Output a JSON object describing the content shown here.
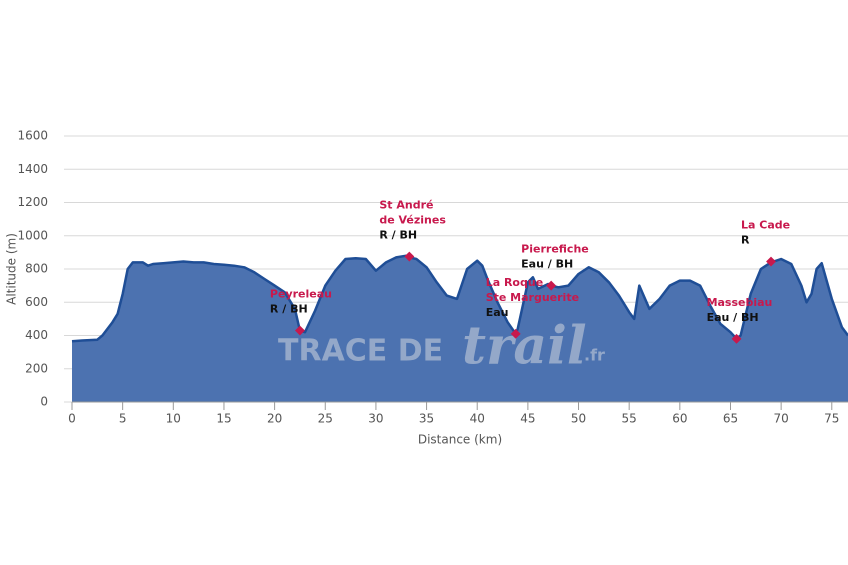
{
  "chart_data": {
    "type": "area",
    "x_label": "Distance (km)",
    "y_label": "Altitude (m)",
    "xlim": [
      0,
      76.6
    ],
    "ylim": [
      0,
      1600
    ],
    "xticks": [
      0,
      5,
      10,
      15,
      20,
      25,
      30,
      35,
      40,
      45,
      50,
      55,
      60,
      65,
      70,
      75
    ],
    "yticks": [
      0,
      200,
      400,
      600,
      800,
      1000,
      1200,
      1400,
      1600
    ],
    "grid": true,
    "fill_color": "#4c72b0",
    "line_color": "#1f4e96",
    "marker_color": "#c8194d",
    "x": [
      0,
      1,
      2.5,
      3,
      4,
      4.5,
      5,
      5.5,
      6,
      7,
      7.5,
      8,
      9,
      10,
      11,
      12,
      13,
      14,
      15,
      16,
      17,
      18,
      19,
      20,
      21,
      22,
      22.5,
      23,
      24,
      25,
      26,
      27,
      28,
      29,
      30,
      31,
      32,
      33,
      33.3,
      34,
      35,
      36,
      37,
      38,
      39,
      40,
      40.5,
      41,
      42,
      43,
      43.8,
      44,
      45,
      45.5,
      46,
      47,
      47.3,
      48,
      49,
      50,
      51,
      52,
      53,
      54,
      55,
      55.5,
      56,
      57,
      58,
      59,
      60,
      61,
      62,
      63,
      64,
      65,
      65.6,
      66,
      67,
      68,
      69,
      70,
      71,
      72,
      72.5,
      73,
      73.5,
      74,
      75,
      76,
      76.6
    ],
    "values": [
      365,
      370,
      375,
      400,
      480,
      530,
      650,
      800,
      840,
      840,
      820,
      830,
      835,
      840,
      845,
      840,
      840,
      830,
      825,
      820,
      810,
      780,
      740,
      700,
      660,
      560,
      430,
      420,
      550,
      700,
      790,
      860,
      865,
      860,
      790,
      840,
      870,
      880,
      870,
      860,
      810,
      720,
      640,
      620,
      800,
      850,
      820,
      740,
      600,
      480,
      410,
      440,
      720,
      750,
      680,
      710,
      700,
      690,
      700,
      770,
      810,
      780,
      720,
      640,
      540,
      500,
      700,
      560,
      620,
      700,
      730,
      730,
      700,
      580,
      470,
      420,
      380,
      400,
      650,
      800,
      840,
      860,
      830,
      700,
      600,
      650,
      800,
      835,
      620,
      450,
      400
    ],
    "waypoints": [
      {
        "x": 22.5,
        "y": 430,
        "name": [
          "Peyreleau"
        ],
        "info": "R / BH"
      },
      {
        "x": 33.3,
        "y": 875,
        "name": [
          "St André",
          "de Vézines"
        ],
        "info": "R / BH"
      },
      {
        "x": 43.8,
        "y": 410,
        "name": [
          "La Roque",
          "Ste Marguerite"
        ],
        "info": "Eau"
      },
      {
        "x": 47.3,
        "y": 700,
        "name": [
          "Pierrefiche"
        ],
        "info": "Eau / BH"
      },
      {
        "x": 65.6,
        "y": 380,
        "name": [
          "Massebiau"
        ],
        "info": "Eau / BH"
      },
      {
        "x": 69,
        "y": 845,
        "name": [
          "La Cade"
        ],
        "info": "R"
      }
    ],
    "watermark": {
      "main": "TRACE DE",
      "script": "trail",
      "suffix": ".fr"
    }
  }
}
